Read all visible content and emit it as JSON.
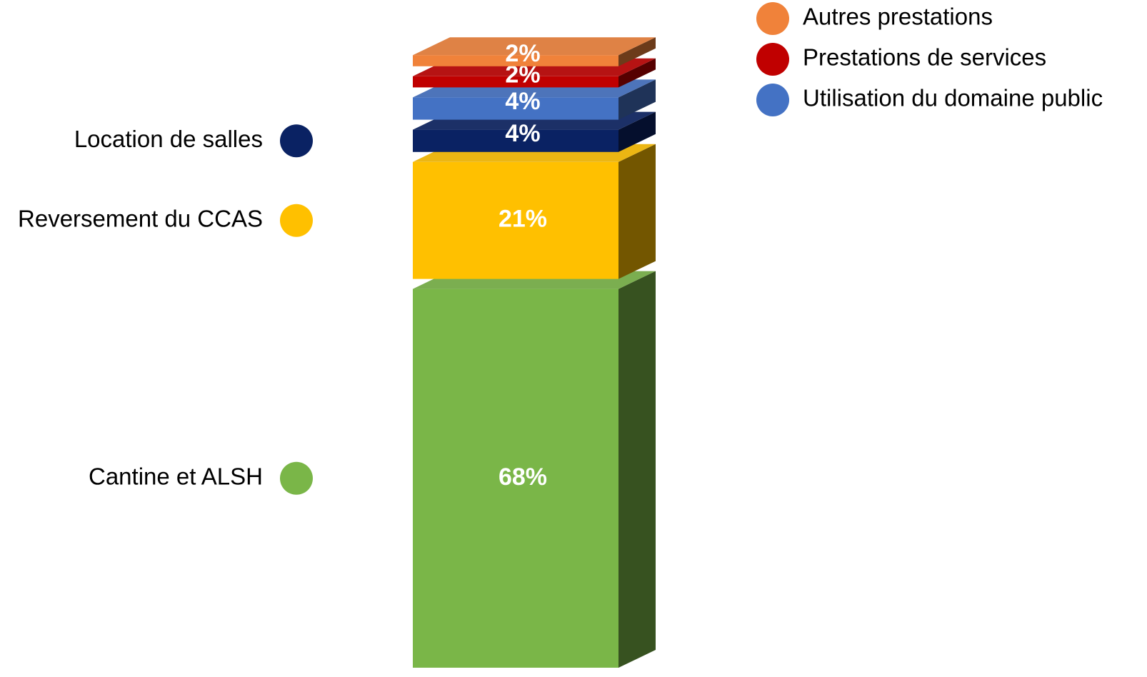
{
  "chart_data": {
    "type": "bar",
    "stacked": true,
    "series": [
      {
        "name": "Cantine et ALSH",
        "color": "#7ab648",
        "values": [
          68
        ],
        "value_labels": [
          "68%"
        ],
        "legend": "left"
      },
      {
        "name": "Reversement du CCAS",
        "color": "#ffc000",
        "values": [
          21
        ],
        "value_labels": [
          "21%"
        ],
        "legend": "left"
      },
      {
        "name": "Location de salles",
        "color": "#0a2263",
        "values": [
          4
        ],
        "value_labels": [
          "4%"
        ],
        "legend": "left"
      },
      {
        "name": "Utilisation du domaine public",
        "color": "#4472c4",
        "values": [
          4
        ],
        "value_labels": [
          "4%"
        ],
        "legend": "right"
      },
      {
        "name": "Prestations de services",
        "color": "#c00000",
        "values": [
          2
        ],
        "value_labels": [
          "2%"
        ],
        "legend": "right"
      },
      {
        "name": "Autres prestations",
        "color": "#f0823a",
        "values": [
          2
        ],
        "value_labels": [
          "2%"
        ],
        "legend": "right"
      }
    ]
  }
}
